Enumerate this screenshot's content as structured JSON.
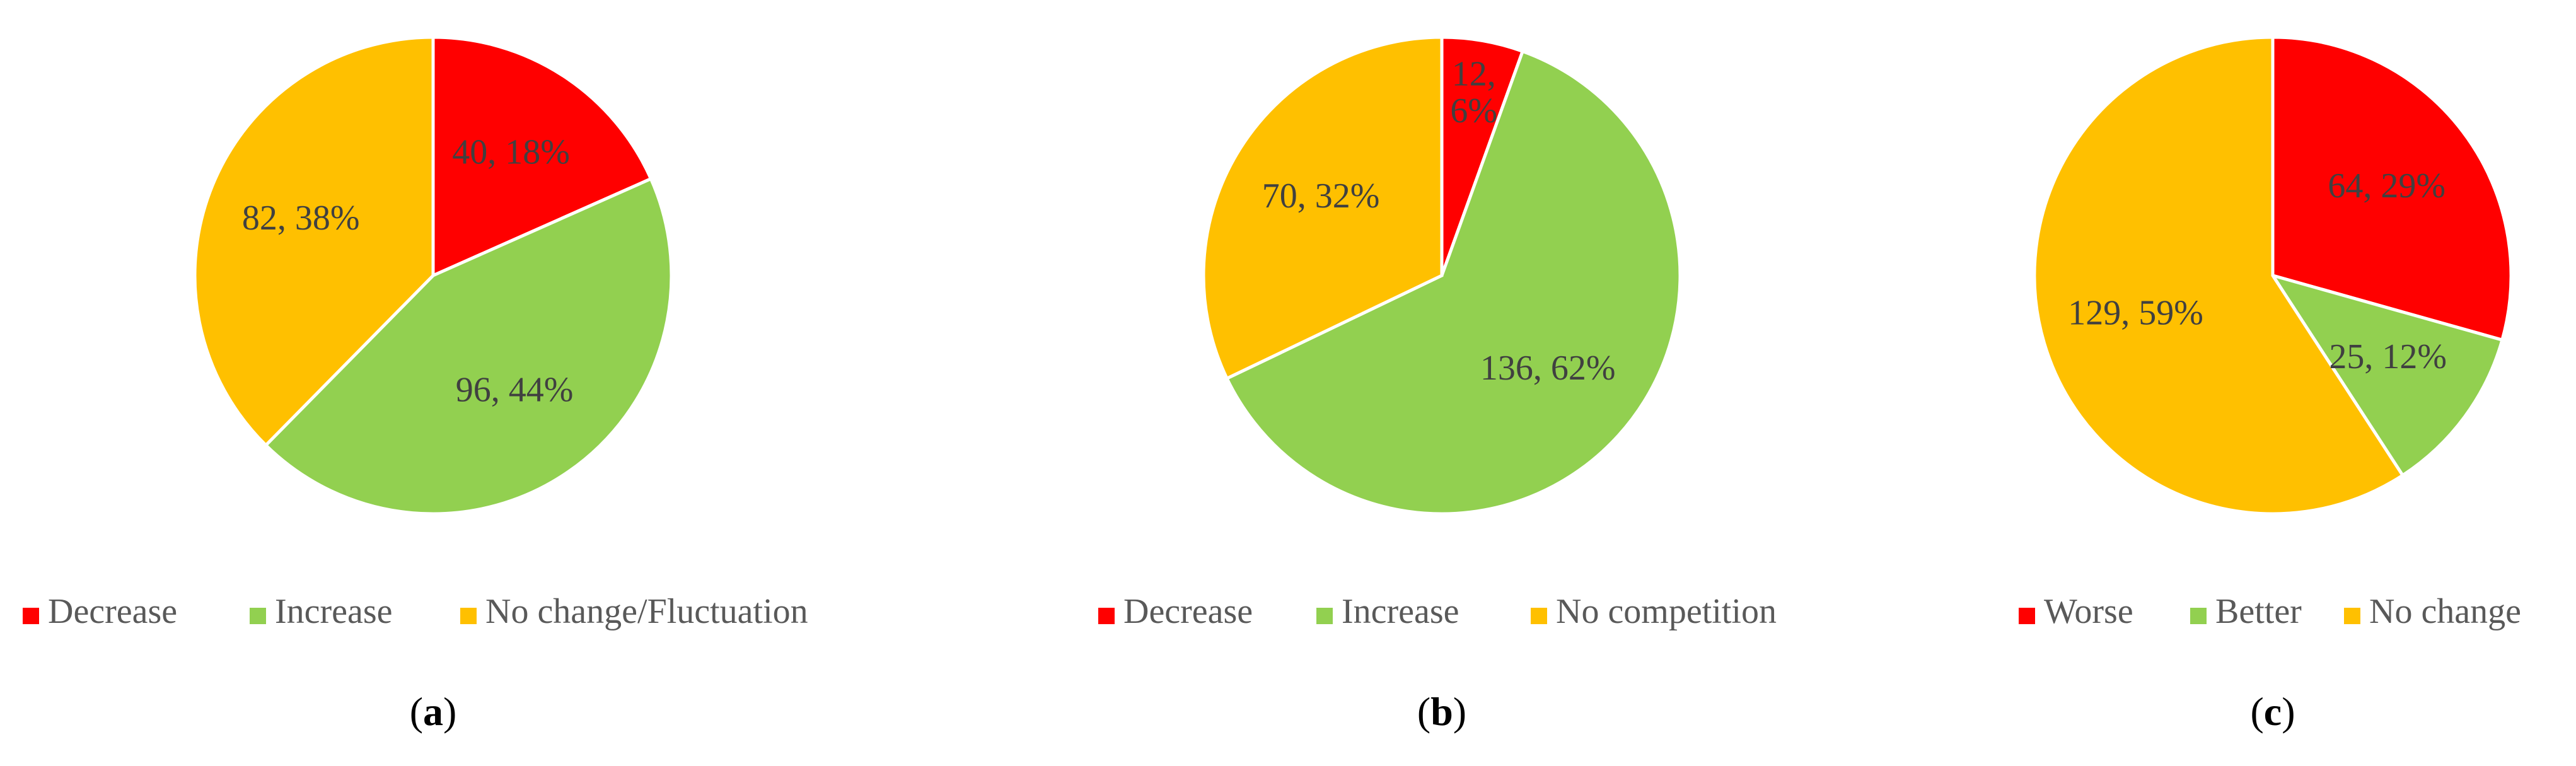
{
  "chart_data": [
    {
      "type": "pie",
      "panel_label": "a",
      "slices": [
        {
          "name": "Decrease",
          "value": 40,
          "percent": "18%",
          "color": "#FF0000"
        },
        {
          "name": "Increase",
          "value": 96,
          "percent": "44%",
          "color": "#92D050"
        },
        {
          "name": "No change/Fluctuation",
          "value": 82,
          "percent": "38%",
          "color": "#FFC000"
        }
      ],
      "legend_position": "bottom"
    },
    {
      "type": "pie",
      "panel_label": "b",
      "slices": [
        {
          "name": "Decrease",
          "value": 12,
          "percent": "6%",
          "color": "#FF0000"
        },
        {
          "name": "Increase",
          "value": 136,
          "percent": "62%",
          "color": "#92D050"
        },
        {
          "name": "No competition",
          "value": 70,
          "percent": "32%",
          "color": "#FFC000"
        }
      ],
      "legend_position": "bottom"
    },
    {
      "type": "pie",
      "panel_label": "c",
      "slices": [
        {
          "name": "Worse",
          "value": 64,
          "percent": "29%",
          "color": "#FF0000"
        },
        {
          "name": "Better",
          "value": 25,
          "percent": "12%",
          "color": "#92D050"
        },
        {
          "name": "No change",
          "value": 129,
          "percent": "59%",
          "color": "#FFC000"
        }
      ],
      "legend_position": "bottom"
    }
  ]
}
